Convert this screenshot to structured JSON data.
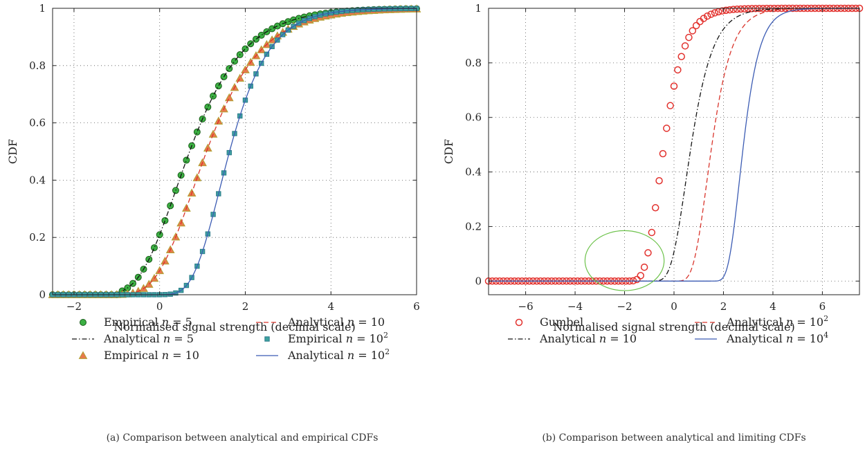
{
  "chart_data": [
    {
      "panel": "a",
      "type": "line",
      "caption": "(a)  Comparison between analytical and empirical CDFs",
      "xlabel": "Normalised signal strength (decimal scale)",
      "ylabel": "CDF",
      "xlim": [
        -2.5,
        6
      ],
      "ylim": [
        0,
        1
      ],
      "xticks": [
        -2,
        0,
        2,
        4,
        6
      ],
      "yticks": [
        0,
        0.2,
        0.4,
        0.6,
        0.8,
        1
      ],
      "xtick_labels": [
        "−2",
        "0",
        "2",
        "4",
        "6"
      ],
      "ytick_labels": [
        "0",
        "0.2",
        "0.4",
        "0.6",
        "0.8",
        "1"
      ],
      "grid": true,
      "legend_position": "below",
      "series": [
        {
          "legend_text": "Empirical ",
          "legend_n": "n",
          "legend_eq": " = 5",
          "legend_sup": "",
          "style": "circle",
          "fill": "#3cb043",
          "stroke": "#1a5c1a",
          "n": 5,
          "x_min": -1.0,
          "x_scale": 0.86
        },
        {
          "legend_text": "Analytical ",
          "legend_n": "n",
          "legend_eq": " = 5",
          "legend_sup": "",
          "style": "dashdot",
          "stroke": "#111111",
          "n": 5,
          "x_min": -1.0,
          "x_scale": 0.86
        },
        {
          "legend_text": "Empirical ",
          "legend_n": "n",
          "legend_eq": " = 10",
          "legend_sup": "",
          "style": "triangle",
          "fill": "#e8794d",
          "stroke": "#b0a030",
          "n": 10,
          "x_min": -1.2,
          "x_scale": 0.86
        },
        {
          "legend_text": "Analytical ",
          "legend_n": "n",
          "legend_eq": " = 10",
          "legend_sup": "",
          "style": "dashed",
          "stroke": "#d9342b",
          "n": 10,
          "x_min": -1.2,
          "x_scale": 0.86
        },
        {
          "legend_text": "Empirical ",
          "legend_n": "n",
          "legend_eq": " = 10",
          "legend_sup": "2",
          "style": "square",
          "fill": "#3fa3a0",
          "stroke": "#2a7a8a",
          "n": 100,
          "x_min": -1.5,
          "x_scale": 0.63
        },
        {
          "legend_text": "Analytical ",
          "legend_n": "n",
          "legend_eq": " = 10",
          "legend_sup": "2",
          "style": "solid",
          "stroke": "#3b5bb3",
          "n": 100,
          "x_min": -1.5,
          "x_scale": 0.63
        }
      ]
    },
    {
      "panel": "b",
      "type": "line",
      "caption": "(b)  Comparison between analytical and limiting CDFs",
      "xlabel": "Normalised signal strength (decimal scale)",
      "ylabel": "CDF",
      "xlim": [
        -7.5,
        7.5
      ],
      "ylim": [
        -0.05,
        1
      ],
      "xticks": [
        -6,
        -4,
        -2,
        0,
        2,
        4,
        6
      ],
      "yticks": [
        0,
        0.2,
        0.4,
        0.6,
        0.8,
        1
      ],
      "xtick_labels": [
        "−6",
        "−4",
        "−2",
        "0",
        "2",
        "4",
        "6"
      ],
      "ytick_labels": [
        "0",
        "0.2",
        "0.4",
        "0.6",
        "0.8",
        "1"
      ],
      "grid": true,
      "legend_position": "below",
      "annotation": {
        "shape": "ellipse",
        "cx": -2.0,
        "cy": 0.075,
        "rx": 1.6,
        "ry": 0.11,
        "stroke": "#6cc24a"
      },
      "series": [
        {
          "legend_text": "Gumbel",
          "legend_n": "",
          "legend_eq": "",
          "legend_sup": "",
          "style": "opencircle",
          "stroke": "#e2312d",
          "mu": -0.6,
          "beta": 0.55
        },
        {
          "legend_text": "Analytical ",
          "legend_n": "n",
          "legend_eq": " = 10",
          "legend_sup": "",
          "style": "dashdot",
          "stroke": "#111111",
          "n": 10,
          "x_min": -0.9,
          "x_scale": 0.6
        },
        {
          "legend_text": "Analytical ",
          "legend_n": "n",
          "legend_eq": " = 10",
          "legend_sup": "2",
          "style": "dashed",
          "stroke": "#d9342b",
          "n": 100,
          "x_min": -1.2,
          "x_scale": 0.55
        },
        {
          "legend_text": "Analytical ",
          "legend_n": "n",
          "legend_eq": " = 10",
          "legend_sup": "4",
          "style": "solid",
          "stroke": "#3b5bb3",
          "n": 10000,
          "x_min": -1.5,
          "x_scale": 0.45
        }
      ]
    }
  ]
}
